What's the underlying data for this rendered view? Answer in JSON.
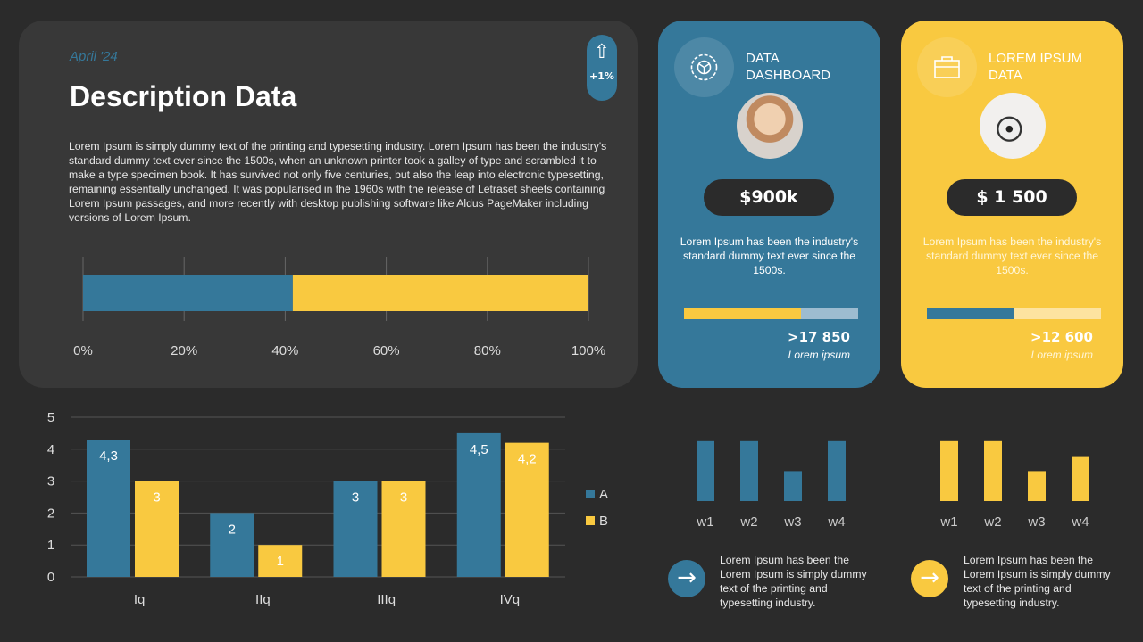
{
  "description": {
    "date": "April '24",
    "title": "Description Data",
    "badge_value": "+1%",
    "badge_icon": "arrow-up-icon",
    "text": "Lorem Ipsum is simply dummy text of the printing and typesetting industry. Lorem Ipsum has been the industry's standard dummy text ever since the 1500s, when an unknown printer took a galley of type and scrambled it to make a type specimen book. It has survived not only five centuries, but also the leap into electronic typesetting, remaining essentially unchanged. It was popularised in the 1960s with the release of Letraset sheets containing Lorem Ipsum passages, and more recently with desktop publishing software like Aldus PageMaker including versions of Lorem Ipsum."
  },
  "cards": [
    {
      "title": "DATA DASHBOARD",
      "icon": "gear-icon",
      "value": "$900k",
      "text": "Lorem Ipsum has been the industry's standard dummy text ever since the 1500s.",
      "progress": 0.67,
      "stat": ">17 850",
      "stat_label": "Lorem ipsum"
    },
    {
      "title": "LOREM IPSUM DATA",
      "icon": "toolbox-icon",
      "value": "$ 1 500",
      "text": "Lorem Ipsum has been the industry's standard dummy text ever since the 1500s.",
      "progress": 0.5,
      "stat": ">12 600",
      "stat_label": "Lorem ipsum"
    }
  ],
  "footer": [
    {
      "text": "Lorem Ipsum has been the Lorem Ipsum is simply dummy text of the printing and typesetting industry.",
      "icon": "arrow-right-icon"
    },
    {
      "text": "Lorem Ipsum has been the Lorem Ipsum is simply dummy text of the printing and typesetting industry.",
      "icon": "arrow-right-icon"
    }
  ],
  "colors": {
    "blue": "#35789a",
    "yellow": "#f9c940",
    "background": "#2b2b2b",
    "panel": "#383838"
  },
  "chart_data": [
    {
      "type": "bar",
      "orientation": "horizontal",
      "stacked": true,
      "categories": [
        ""
      ],
      "series": [
        {
          "values": [
            41.5
          ],
          "color": "#35789a"
        },
        {
          "values": [
            58.5
          ],
          "color": "#f9c940"
        }
      ],
      "xlim": [
        0,
        100
      ],
      "xticks": [
        "0%",
        "20%",
        "40%",
        "60%",
        "80%",
        "100%"
      ],
      "grid": true
    },
    {
      "type": "bar",
      "categories": [
        "Iq",
        "IIq",
        "IIIq",
        "IVq"
      ],
      "series": [
        {
          "name": "A",
          "values": [
            4.3,
            2,
            3,
            4.5
          ],
          "labels": [
            "4,3",
            "2",
            "3",
            "4,5"
          ]
        },
        {
          "name": "B",
          "values": [
            3,
            1,
            3,
            4.2
          ],
          "labels": [
            "3",
            "1",
            "3",
            "4,2"
          ]
        }
      ],
      "ylim": [
        0,
        5
      ],
      "yticks": [
        "0",
        "1",
        "2",
        "3",
        "4",
        "5"
      ],
      "grid": true,
      "legend": "right"
    },
    {
      "type": "bar",
      "categories": [
        "w1",
        "w2",
        "w3",
        "w4"
      ],
      "values": [
        4,
        4,
        2,
        4
      ],
      "color": "#35789a"
    },
    {
      "type": "bar",
      "categories": [
        "w1",
        "w2",
        "w3",
        "w4"
      ],
      "values": [
        4,
        4,
        2,
        3
      ],
      "color": "#f9c940"
    }
  ]
}
